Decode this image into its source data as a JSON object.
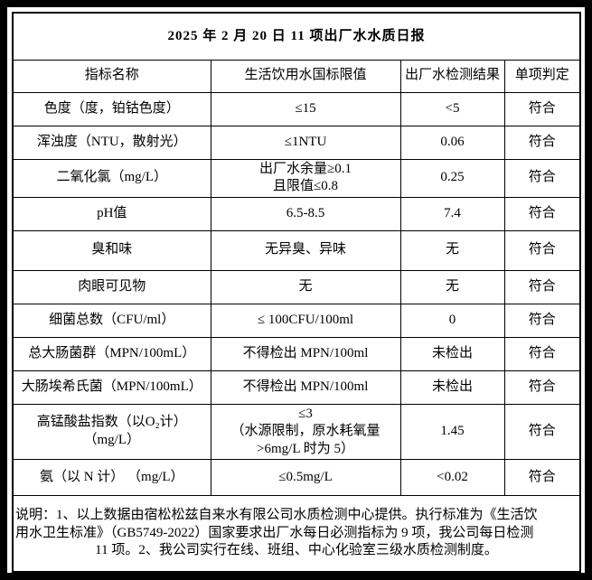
{
  "report": {
    "title": "2025 年 2 月 20 日 11 项出厂水水质日报",
    "headers": {
      "indicator": "指标名称",
      "limit": "生活饮用水国标限值",
      "result": "出厂水检测结果",
      "judgment": "单项判定"
    },
    "rows": [
      {
        "indicator": "色度（度，铂钴色度）",
        "limit": "≤15",
        "result": "<5",
        "judgment": "符合"
      },
      {
        "indicator": "浑浊度（NTU，散射光）",
        "limit": "≤1NTU",
        "result": "0.06",
        "judgment": "符合"
      },
      {
        "indicator": "二氧化氯（mg/L）",
        "limit": "出厂水余量≥0.1\n且限值≤0.8",
        "result": "0.25",
        "judgment": "符合"
      },
      {
        "indicator": "pH值",
        "limit": "6.5-8.5",
        "result": "7.4",
        "judgment": "符合"
      },
      {
        "indicator": "臭和味",
        "limit": "无异臭、异味",
        "result": "无",
        "judgment": "符合"
      },
      {
        "indicator": "肉眼可见物",
        "limit": "无",
        "result": "无",
        "judgment": "符合"
      },
      {
        "indicator": "细菌总数（CFU/ml）",
        "limit": "≤ 100CFU/100ml",
        "result": "0",
        "judgment": "符合"
      },
      {
        "indicator": "总大肠菌群（MPN/100mL）",
        "limit": "不得检出 MPN/100ml",
        "result": "未检出",
        "judgment": "符合"
      },
      {
        "indicator": "大肠埃希氏菌（MPN/100mL）",
        "limit": "不得检出 MPN/100ml",
        "result": "未检出",
        "judgment": "符合"
      },
      {
        "indicator": "高锰酸盐指数（以O₂计）（mg/L）",
        "limit": "≤3\n（水源限制，原水耗氧量\n>6mg/L 时为 5）",
        "result": "1.45",
        "judgment": "符合"
      },
      {
        "indicator": "氨（以 N 计） （mg/L）",
        "limit": "≤0.5mg/L",
        "result": "<0.02",
        "judgment": "符合"
      }
    ],
    "note": {
      "lines": [
        "说明：1、以上数据由宿松松兹自来水有限公司水质检测中心提供。执行标准为《生活饮",
        "用水卫生标准》（GB5749-2022）国家要求出厂水每日必测指标为 9 项，我公司每日检测",
        "11 项。2、我公司实行在线、班组、中心化验室三级水质检测制度。"
      ]
    }
  }
}
